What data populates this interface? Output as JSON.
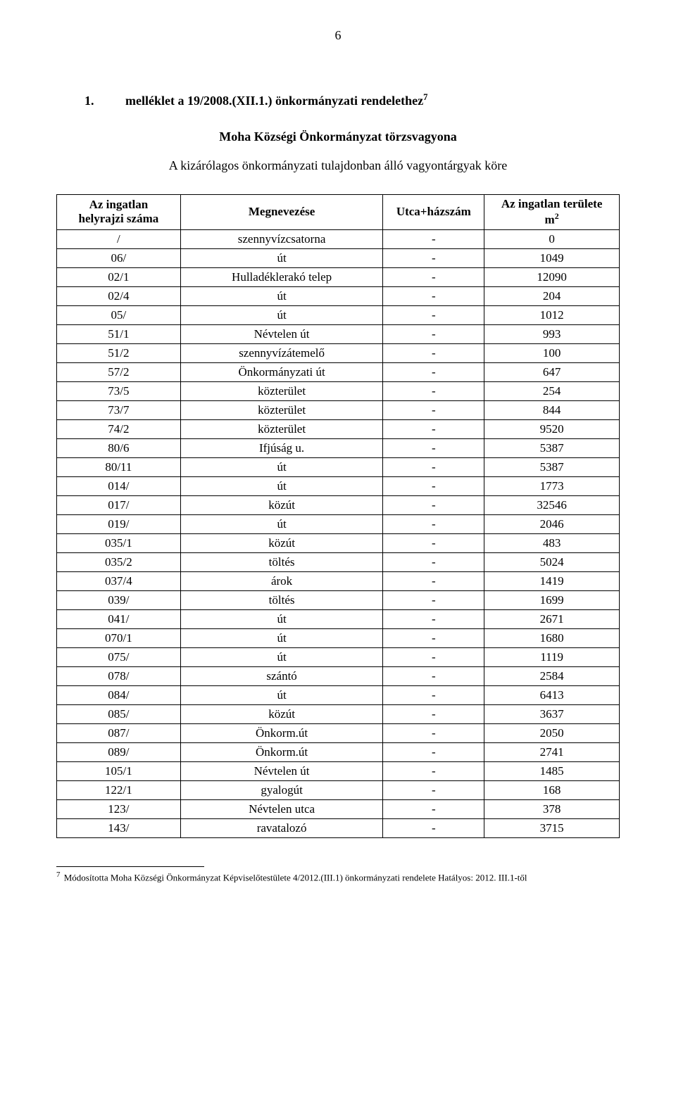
{
  "page_number": "6",
  "heading": {
    "number": "1.",
    "text_part1": "melléklet a  19/2008.(XII.1.) önkormányzati rendelethez",
    "sup": "7"
  },
  "sub_heading": "Moha Községi Önkormányzat törzsvagyona",
  "desc_line": "A kizárólagos önkormányzati tulajdonban álló vagyontárgyak köre",
  "table": {
    "headers": {
      "col1_line1": "Az ingatlan",
      "col1_line2": "helyrajzi száma",
      "col2": "Megnevezése",
      "col3": "Utca+házszám",
      "col4_line1": "Az ingatlan területe",
      "col4_line2_prefix": "m",
      "col4_line2_sup": "2"
    },
    "rows": [
      {
        "id": "/",
        "name": "szennyvízcsatorna",
        "addr": "-",
        "area": "0"
      },
      {
        "id": "06/",
        "name": "út",
        "addr": "-",
        "area": "1049"
      },
      {
        "id": "02/1",
        "name": "Hulladéklerakó telep",
        "addr": "-",
        "area": "12090"
      },
      {
        "id": "02/4",
        "name": "út",
        "addr": "-",
        "area": "204"
      },
      {
        "id": "05/",
        "name": "út",
        "addr": "-",
        "area": "1012"
      },
      {
        "id": "51/1",
        "name": "Névtelen út",
        "addr": "-",
        "area": "993"
      },
      {
        "id": "51/2",
        "name": "szennyvízátemelő",
        "addr": "-",
        "area": "100"
      },
      {
        "id": "57/2",
        "name": "Önkormányzati út",
        "addr": "-",
        "area": "647"
      },
      {
        "id": "73/5",
        "name": "közterület",
        "addr": "-",
        "area": "254"
      },
      {
        "id": "73/7",
        "name": "közterület",
        "addr": "-",
        "area": "844"
      },
      {
        "id": "74/2",
        "name": "közterület",
        "addr": "-",
        "area": "9520"
      },
      {
        "id": "80/6",
        "name": "Ifjúság u.",
        "addr": "-",
        "area": "5387"
      },
      {
        "id": "80/11",
        "name": "út",
        "addr": "-",
        "area": "5387"
      },
      {
        "id": "014/",
        "name": "út",
        "addr": "-",
        "area": "1773"
      },
      {
        "id": "017/",
        "name": "közút",
        "addr": "-",
        "area": "32546"
      },
      {
        "id": "019/",
        "name": "út",
        "addr": "-",
        "area": "2046"
      },
      {
        "id": "035/1",
        "name": "közút",
        "addr": "-",
        "area": "483"
      },
      {
        "id": "035/2",
        "name": "töltés",
        "addr": "-",
        "area": "5024"
      },
      {
        "id": "037/4",
        "name": "árok",
        "addr": "-",
        "area": "1419"
      },
      {
        "id": "039/",
        "name": "töltés",
        "addr": "-",
        "area": "1699"
      },
      {
        "id": "041/",
        "name": "út",
        "addr": "-",
        "area": "2671"
      },
      {
        "id": "070/1",
        "name": "út",
        "addr": "-",
        "area": "1680"
      },
      {
        "id": "075/",
        "name": "út",
        "addr": "-",
        "area": "1119"
      },
      {
        "id": "078/",
        "name": "szántó",
        "addr": "-",
        "area": "2584"
      },
      {
        "id": "084/",
        "name": "út",
        "addr": "-",
        "area": "6413"
      },
      {
        "id": "085/",
        "name": "közút",
        "addr": "-",
        "area": "3637"
      },
      {
        "id": "087/",
        "name": "Önkorm.út",
        "addr": "-",
        "area": "2050"
      },
      {
        "id": "089/",
        "name": "Önkorm.út",
        "addr": "-",
        "area": "2741"
      },
      {
        "id": "105/1",
        "name": "Névtelen út",
        "addr": "-",
        "area": "1485"
      },
      {
        "id": "122/1",
        "name": "gyalogút",
        "addr": "-",
        "area": "168"
      },
      {
        "id": "123/",
        "name": "Névtelen utca",
        "addr": "-",
        "area": "378"
      },
      {
        "id": "143/",
        "name": "ravatalozó",
        "addr": "-",
        "area": "3715"
      }
    ]
  },
  "footnote": {
    "num": "7",
    "text": "Módosította Moha  Községi Önkormányzat Képviselőtestülete 4/2012.(III.1) önkormányzati rendelete Hatályos: 2012. III.1-től"
  }
}
